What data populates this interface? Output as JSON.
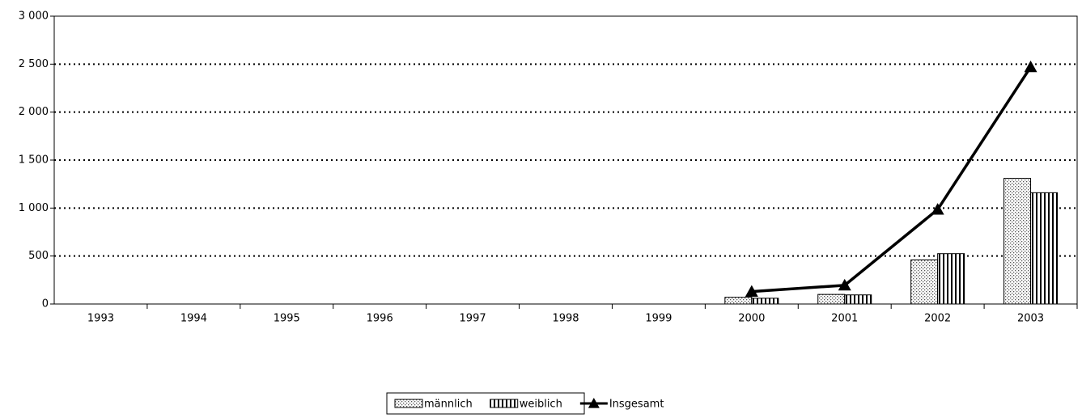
{
  "chart_data": {
    "type": "bar",
    "categories": [
      "1993",
      "1994",
      "1995",
      "1996",
      "1997",
      "1998",
      "1999",
      "2000",
      "2001",
      "2002",
      "2003"
    ],
    "series": [
      {
        "name": "männlich",
        "type": "bar",
        "pattern": "dots",
        "color": "#000000",
        "values": [
          null,
          null,
          null,
          null,
          null,
          null,
          null,
          70,
          100,
          460,
          1310
        ]
      },
      {
        "name": "weiblich",
        "type": "bar",
        "pattern": "stripes",
        "color": "#000000",
        "values": [
          null,
          null,
          null,
          null,
          null,
          null,
          null,
          60,
          95,
          525,
          1160
        ]
      },
      {
        "name": "Insgesamt",
        "type": "line",
        "marker": "triangle",
        "color": "#000000",
        "values": [
          null,
          null,
          null,
          null,
          null,
          null,
          null,
          130,
          195,
          985,
          2470
        ]
      }
    ],
    "ylim": [
      0,
      3000
    ],
    "yticks": [
      0,
      500,
      {
        "value": 1000,
        "label": "1 000"
      },
      {
        "value": 1500,
        "label": "1 500"
      },
      {
        "value": 2000,
        "label": "2 000"
      },
      {
        "value": 2500,
        "label": "2 500"
      },
      {
        "value": 3000,
        "label": "3 000"
      }
    ],
    "grid": true,
    "legend": "bottom"
  }
}
